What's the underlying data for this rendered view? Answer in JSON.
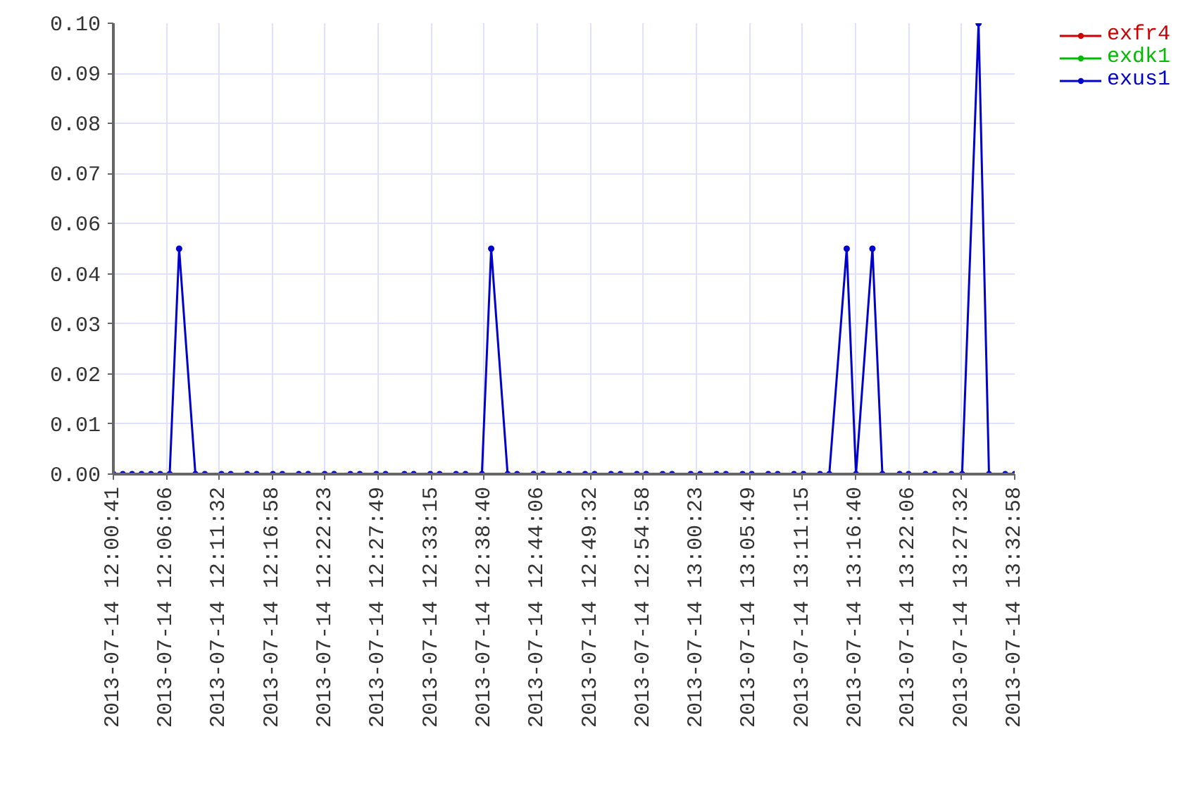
{
  "chart_data": {
    "type": "line",
    "x": [
      "2013-07-14T12:00:41",
      "2013-07-14T12:01:39",
      "2013-07-14T12:02:36",
      "2013-07-14T12:03:34",
      "2013-07-14T12:04:32",
      "2013-07-14T12:05:29",
      "2013-07-14T12:06:27",
      "2013-07-14T12:07:25",
      "2013-07-14T12:09:05",
      "2013-07-14T12:10:03",
      "2013-07-14T12:11:45",
      "2013-07-14T12:12:42",
      "2013-07-14T12:14:23",
      "2013-07-14T12:15:21",
      "2013-07-14T12:17:01",
      "2013-07-14T12:17:59",
      "2013-07-14T12:19:40",
      "2013-07-14T12:20:38",
      "2013-07-14T12:22:19",
      "2013-07-14T12:23:17",
      "2013-07-14T12:24:57",
      "2013-07-14T12:25:55",
      "2013-07-14T12:27:36",
      "2013-07-14T12:28:33",
      "2013-07-14T12:30:29",
      "2013-07-14T12:31:26",
      "2013-07-14T12:33:08",
      "2013-07-14T12:34:05",
      "2013-07-14T12:35:46",
      "2013-07-14T12:36:44",
      "2013-07-14T12:38:25",
      "2013-07-14T12:39:22",
      "2013-07-14T12:41:03",
      "2013-07-14T12:42:01",
      "2013-07-14T12:43:42",
      "2013-07-14T12:44:40",
      "2013-07-14T12:46:21",
      "2013-07-14T12:47:18",
      "2013-07-14T12:48:59",
      "2013-07-14T12:49:57",
      "2013-07-14T12:51:38",
      "2013-07-14T12:52:36",
      "2013-07-14T12:54:17",
      "2013-07-14T12:55:14",
      "2013-07-14T12:56:55",
      "2013-07-14T12:57:53",
      "2013-07-14T12:59:48",
      "2013-07-14T13:00:46",
      "2013-07-14T13:02:26",
      "2013-07-14T13:03:24",
      "2013-07-14T13:05:06",
      "2013-07-14T13:06:03",
      "2013-07-14T13:07:44",
      "2013-07-14T13:08:42",
      "2013-07-14T13:10:22",
      "2013-07-14T13:11:20",
      "2013-07-14T13:13:02",
      "2013-07-14T13:13:59",
      "2013-07-14T13:15:46",
      "2013-07-14T13:16:43",
      "2013-07-14T13:18:24",
      "2013-07-14T13:19:25",
      "2013-07-14T13:21:11",
      "2013-07-14T13:22:06",
      "2013-07-14T13:23:50",
      "2013-07-14T13:24:47",
      "2013-07-14T13:26:29",
      "2013-07-14T13:27:35",
      "2013-07-14T13:29:16",
      "2013-07-14T13:30:20",
      "2013-07-14T13:32:00",
      "2013-07-14T13:32:58"
    ],
    "xlim": [
      "2013-07-14T12:00:41",
      "2013-07-14T13:32:58"
    ],
    "xticks": [
      {
        "value": "2013-07-14T12:00:41",
        "label": "2013-07-14 12:00:41"
      },
      {
        "value": "2013-07-14T12:06:06",
        "label": "2013-07-14 12:06:06"
      },
      {
        "value": "2013-07-14T12:11:32",
        "label": "2013-07-14 12:11:32"
      },
      {
        "value": "2013-07-14T12:16:58",
        "label": "2013-07-14 12:16:58"
      },
      {
        "value": "2013-07-14T12:22:23",
        "label": "2013-07-14 12:22:23"
      },
      {
        "value": "2013-07-14T12:27:49",
        "label": "2013-07-14 12:27:49"
      },
      {
        "value": "2013-07-14T12:33:15",
        "label": "2013-07-14 12:33:15"
      },
      {
        "value": "2013-07-14T12:38:40",
        "label": "2013-07-14 12:38:40"
      },
      {
        "value": "2013-07-14T12:44:06",
        "label": "2013-07-14 12:44:06"
      },
      {
        "value": "2013-07-14T12:49:32",
        "label": "2013-07-14 12:49:32"
      },
      {
        "value": "2013-07-14T12:54:58",
        "label": "2013-07-14 12:54:58"
      },
      {
        "value": "2013-07-14T13:00:23",
        "label": "2013-07-14 13:00:23"
      },
      {
        "value": "2013-07-14T13:05:49",
        "label": "2013-07-14 13:05:49"
      },
      {
        "value": "2013-07-14T13:11:15",
        "label": "2013-07-14 13:11:15"
      },
      {
        "value": "2013-07-14T13:16:40",
        "label": "2013-07-14 13:16:40"
      },
      {
        "value": "2013-07-14T13:22:06",
        "label": "2013-07-14 13:22:06"
      },
      {
        "value": "2013-07-14T13:27:32",
        "label": "2013-07-14 13:27:32"
      },
      {
        "value": "2013-07-14T13:32:58",
        "label": "2013-07-14 13:32:58"
      }
    ],
    "ylim": [
      0,
      0.1
    ],
    "yticks": [
      {
        "value": 0,
        "label": "0.00"
      },
      {
        "value": 0.01111,
        "label": "0.01"
      },
      {
        "value": 0.02222,
        "label": "0.02"
      },
      {
        "value": 0.03333,
        "label": "0.03"
      },
      {
        "value": 0.04444,
        "label": "0.04"
      },
      {
        "value": 0.05556,
        "label": "0.06"
      },
      {
        "value": 0.06667,
        "label": "0.07"
      },
      {
        "value": 0.07778,
        "label": "0.08"
      },
      {
        "value": 0.08889,
        "label": "0.09"
      },
      {
        "value": 0.1,
        "label": "0.10"
      }
    ],
    "grid": true,
    "legend": "top right",
    "marker": "circle",
    "line_style": "solid",
    "series": [
      {
        "name": "exfr4",
        "color": "#cc0000",
        "values": [
          null,
          null,
          null,
          null,
          null,
          null,
          null,
          null,
          null,
          null,
          null,
          null,
          null,
          null,
          null,
          null,
          null,
          null,
          null,
          null,
          null,
          null,
          null,
          null,
          null,
          null,
          null,
          null,
          null,
          null,
          null,
          null,
          null,
          null,
          null,
          null,
          null,
          null,
          null,
          null,
          null,
          null,
          null,
          null,
          null,
          null,
          null,
          null,
          null,
          null,
          null,
          null,
          null,
          null,
          null,
          null,
          null,
          null,
          null,
          null,
          null,
          null,
          null,
          null,
          null,
          null,
          null,
          null,
          null,
          null,
          null,
          null
        ]
      },
      {
        "name": "exdk1",
        "color": "#00bb00",
        "values": [
          null,
          null,
          null,
          null,
          null,
          null,
          null,
          null,
          null,
          null,
          null,
          null,
          null,
          null,
          null,
          null,
          null,
          null,
          null,
          null,
          null,
          null,
          null,
          null,
          null,
          null,
          null,
          null,
          null,
          null,
          null,
          null,
          null,
          null,
          null,
          null,
          null,
          null,
          null,
          null,
          null,
          null,
          null,
          null,
          null,
          null,
          null,
          null,
          null,
          null,
          null,
          null,
          null,
          null,
          null,
          null,
          null,
          null,
          null,
          null,
          null,
          null,
          null,
          null,
          null,
          null,
          null,
          null,
          null,
          null,
          null,
          null
        ]
      },
      {
        "name": "exus1",
        "color": "#0000cc",
        "values": [
          0,
          0,
          0,
          0,
          0,
          0,
          0,
          0.05,
          0,
          0,
          0,
          0,
          0,
          0,
          0,
          0,
          0,
          0,
          0,
          0,
          0,
          0,
          0,
          0,
          0,
          0,
          0,
          0,
          0,
          0,
          0,
          0.05,
          0,
          0,
          0,
          0,
          0,
          0,
          0,
          0,
          0,
          0,
          0,
          0,
          0,
          0,
          0,
          0,
          0,
          0,
          0,
          0,
          0,
          0,
          0,
          0,
          0,
          0,
          0.05,
          0,
          0.05,
          0,
          0,
          0,
          0,
          0,
          0,
          0,
          0.1,
          0,
          0,
          0
        ]
      }
    ]
  }
}
